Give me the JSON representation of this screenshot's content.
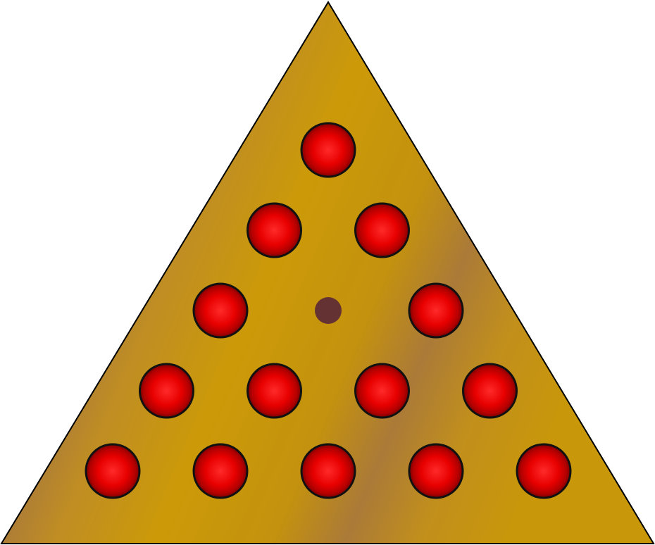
{
  "game": {
    "name": "peg-solitaire-triangle",
    "rows": 5,
    "colors": {
      "board": "#c8950a",
      "board_grain": "#a9783a",
      "board_outline": "#000000",
      "peg_highlight": "#ff2a2a",
      "peg_body": "#e00000",
      "peg_shadow": "#7a0000",
      "peg_outline": "#111111",
      "hole": "#643232"
    },
    "board": [
      [
        true
      ],
      [
        true,
        true
      ],
      [
        true,
        false,
        true
      ],
      [
        true,
        true,
        true,
        true
      ],
      [
        true,
        true,
        true,
        true,
        true
      ]
    ]
  }
}
